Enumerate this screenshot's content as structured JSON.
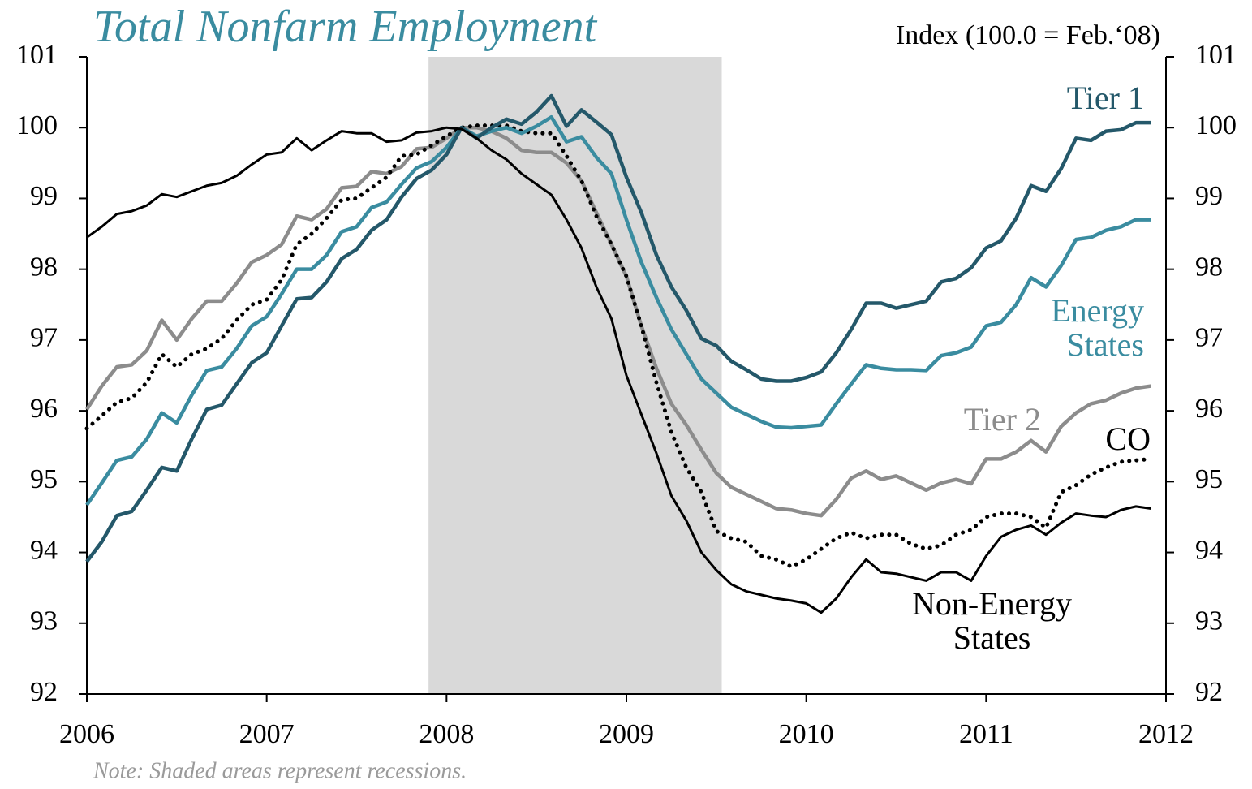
{
  "chart_data": {
    "type": "line",
    "title": "Total Nonfarm Employment",
    "subtitle": "Index (100.0 = Feb.‘08)",
    "note": "Note: Shaded areas represent recessions.",
    "xlim": [
      2006,
      2012
    ],
    "xticks": [
      2006,
      2007,
      2008,
      2009,
      2010,
      2011,
      2012
    ],
    "ylim": [
      92,
      101
    ],
    "yticks": [
      92,
      93,
      94,
      95,
      96,
      97,
      98,
      99,
      100,
      101
    ],
    "recession": [
      2007.9,
      2009.53
    ],
    "recession_color": "#d9d9d9",
    "x": [
      2006,
      2006.083,
      2006.167,
      2006.25,
      2006.333,
      2006.417,
      2006.5,
      2006.583,
      2006.667,
      2006.75,
      2006.833,
      2006.917,
      2007,
      2007.083,
      2007.167,
      2007.25,
      2007.333,
      2007.417,
      2007.5,
      2007.583,
      2007.667,
      2007.75,
      2007.833,
      2007.917,
      2008,
      2008.083,
      2008.167,
      2008.25,
      2008.333,
      2008.417,
      2008.5,
      2008.583,
      2008.667,
      2008.75,
      2008.833,
      2008.917,
      2009,
      2009.083,
      2009.167,
      2009.25,
      2009.333,
      2009.417,
      2009.5,
      2009.583,
      2009.667,
      2009.75,
      2009.833,
      2009.917,
      2010,
      2010.083,
      2010.167,
      2010.25,
      2010.333,
      2010.417,
      2010.5,
      2010.583,
      2010.667,
      2010.75,
      2010.833,
      2010.917,
      2011,
      2011.083,
      2011.167,
      2011.25,
      2011.333,
      2011.417,
      2011.5,
      2011.583,
      2011.667,
      2011.75,
      2011.833,
      2011.917
    ],
    "series": [
      {
        "name": "Tier 1",
        "color": "#24586a",
        "width": 4.5,
        "dotted": false,
        "values": [
          93.87,
          94.15,
          94.52,
          94.58,
          94.88,
          95.2,
          95.15,
          95.6,
          96.02,
          96.08,
          96.38,
          96.68,
          96.82,
          97.2,
          97.58,
          97.6,
          97.82,
          98.15,
          98.28,
          98.55,
          98.7,
          99.02,
          99.28,
          99.4,
          99.62,
          100.0,
          99.85,
          100.0,
          100.12,
          100.05,
          100.22,
          100.45,
          100.02,
          100.25,
          100.08,
          99.9,
          99.3,
          98.8,
          98.2,
          97.75,
          97.42,
          97.02,
          96.92,
          96.7,
          96.58,
          96.45,
          96.42,
          96.42,
          96.47,
          96.55,
          96.82,
          97.15,
          97.52,
          97.52,
          97.45,
          97.5,
          97.55,
          97.82,
          97.87,
          98.02,
          98.3,
          98.4,
          98.72,
          99.18,
          99.1,
          99.42,
          99.85,
          99.82,
          99.95,
          99.97,
          100.07,
          100.07
        ]
      },
      {
        "name": "Energy States",
        "color": "#3a8ca0",
        "width": 4.5,
        "dotted": false,
        "values": [
          94.67,
          94.98,
          95.3,
          95.35,
          95.6,
          95.97,
          95.83,
          96.22,
          96.57,
          96.62,
          96.88,
          97.2,
          97.33,
          97.65,
          98.0,
          98.0,
          98.2,
          98.53,
          98.6,
          98.87,
          98.95,
          99.2,
          99.43,
          99.52,
          99.72,
          100.0,
          99.88,
          99.95,
          100.0,
          99.92,
          100.02,
          100.15,
          99.8,
          99.87,
          99.58,
          99.35,
          98.7,
          98.1,
          97.6,
          97.15,
          96.8,
          96.45,
          96.25,
          96.05,
          95.95,
          95.85,
          95.77,
          95.76,
          95.78,
          95.8,
          96.1,
          96.38,
          96.65,
          96.6,
          96.58,
          96.58,
          96.57,
          96.78,
          96.82,
          96.9,
          97.2,
          97.25,
          97.5,
          97.88,
          97.75,
          98.05,
          98.42,
          98.45,
          98.55,
          98.6,
          98.7,
          98.7
        ]
      },
      {
        "name": "Tier 2",
        "color": "#8c8c8c",
        "width": 4.5,
        "dotted": false,
        "values": [
          96.02,
          96.35,
          96.62,
          96.65,
          96.85,
          97.28,
          97.0,
          97.3,
          97.55,
          97.55,
          97.8,
          98.1,
          98.2,
          98.35,
          98.75,
          98.7,
          98.85,
          99.15,
          99.17,
          99.38,
          99.35,
          99.45,
          99.7,
          99.72,
          99.85,
          100.0,
          100.0,
          99.95,
          99.85,
          99.68,
          99.65,
          99.65,
          99.5,
          99.25,
          98.8,
          98.35,
          97.9,
          97.2,
          96.6,
          96.1,
          95.8,
          95.45,
          95.12,
          94.92,
          94.82,
          94.72,
          94.62,
          94.6,
          94.55,
          94.52,
          94.75,
          95.05,
          95.15,
          95.03,
          95.08,
          94.98,
          94.88,
          94.98,
          95.03,
          94.97,
          95.32,
          95.32,
          95.42,
          95.58,
          95.42,
          95.78,
          95.97,
          96.1,
          96.15,
          96.25,
          96.32,
          96.35
        ]
      },
      {
        "name": "CO",
        "color": "#000000",
        "width": 4,
        "dotted": true,
        "values": [
          95.75,
          95.93,
          96.12,
          96.18,
          96.4,
          96.8,
          96.62,
          96.8,
          96.88,
          97.02,
          97.28,
          97.5,
          97.57,
          97.85,
          98.35,
          98.5,
          98.72,
          98.98,
          99.0,
          99.15,
          99.3,
          99.6,
          99.62,
          99.75,
          99.88,
          100.0,
          100.03,
          100.03,
          100.03,
          99.95,
          99.92,
          99.92,
          99.6,
          99.25,
          98.75,
          98.35,
          97.9,
          97.2,
          96.4,
          95.7,
          95.2,
          94.85,
          94.3,
          94.2,
          94.15,
          93.95,
          93.9,
          93.8,
          93.9,
          94.05,
          94.2,
          94.28,
          94.2,
          94.25,
          94.25,
          94.12,
          94.05,
          94.1,
          94.25,
          94.32,
          94.5,
          94.55,
          94.55,
          94.5,
          94.35,
          94.85,
          94.95,
          95.1,
          95.2,
          95.28,
          95.3,
          95.32
        ]
      },
      {
        "name": "Non-Energy States",
        "color": "#000000",
        "width": 3,
        "dotted": false,
        "values": [
          98.45,
          98.6,
          98.78,
          98.82,
          98.9,
          99.06,
          99.02,
          99.1,
          99.18,
          99.22,
          99.32,
          99.48,
          99.62,
          99.65,
          99.85,
          99.68,
          99.82,
          99.95,
          99.92,
          99.92,
          99.8,
          99.82,
          99.93,
          99.95,
          100.0,
          99.98,
          99.85,
          99.68,
          99.55,
          99.35,
          99.2,
          99.05,
          98.7,
          98.3,
          97.75,
          97.3,
          96.5,
          95.95,
          95.4,
          94.8,
          94.45,
          94.0,
          93.75,
          93.55,
          93.45,
          93.4,
          93.35,
          93.32,
          93.28,
          93.15,
          93.35,
          93.65,
          93.9,
          93.72,
          93.7,
          93.65,
          93.6,
          93.72,
          93.72,
          93.6,
          93.95,
          94.22,
          94.32,
          94.38,
          94.25,
          94.42,
          94.55,
          94.52,
          94.5,
          94.6,
          94.65,
          94.62
        ]
      }
    ]
  }
}
